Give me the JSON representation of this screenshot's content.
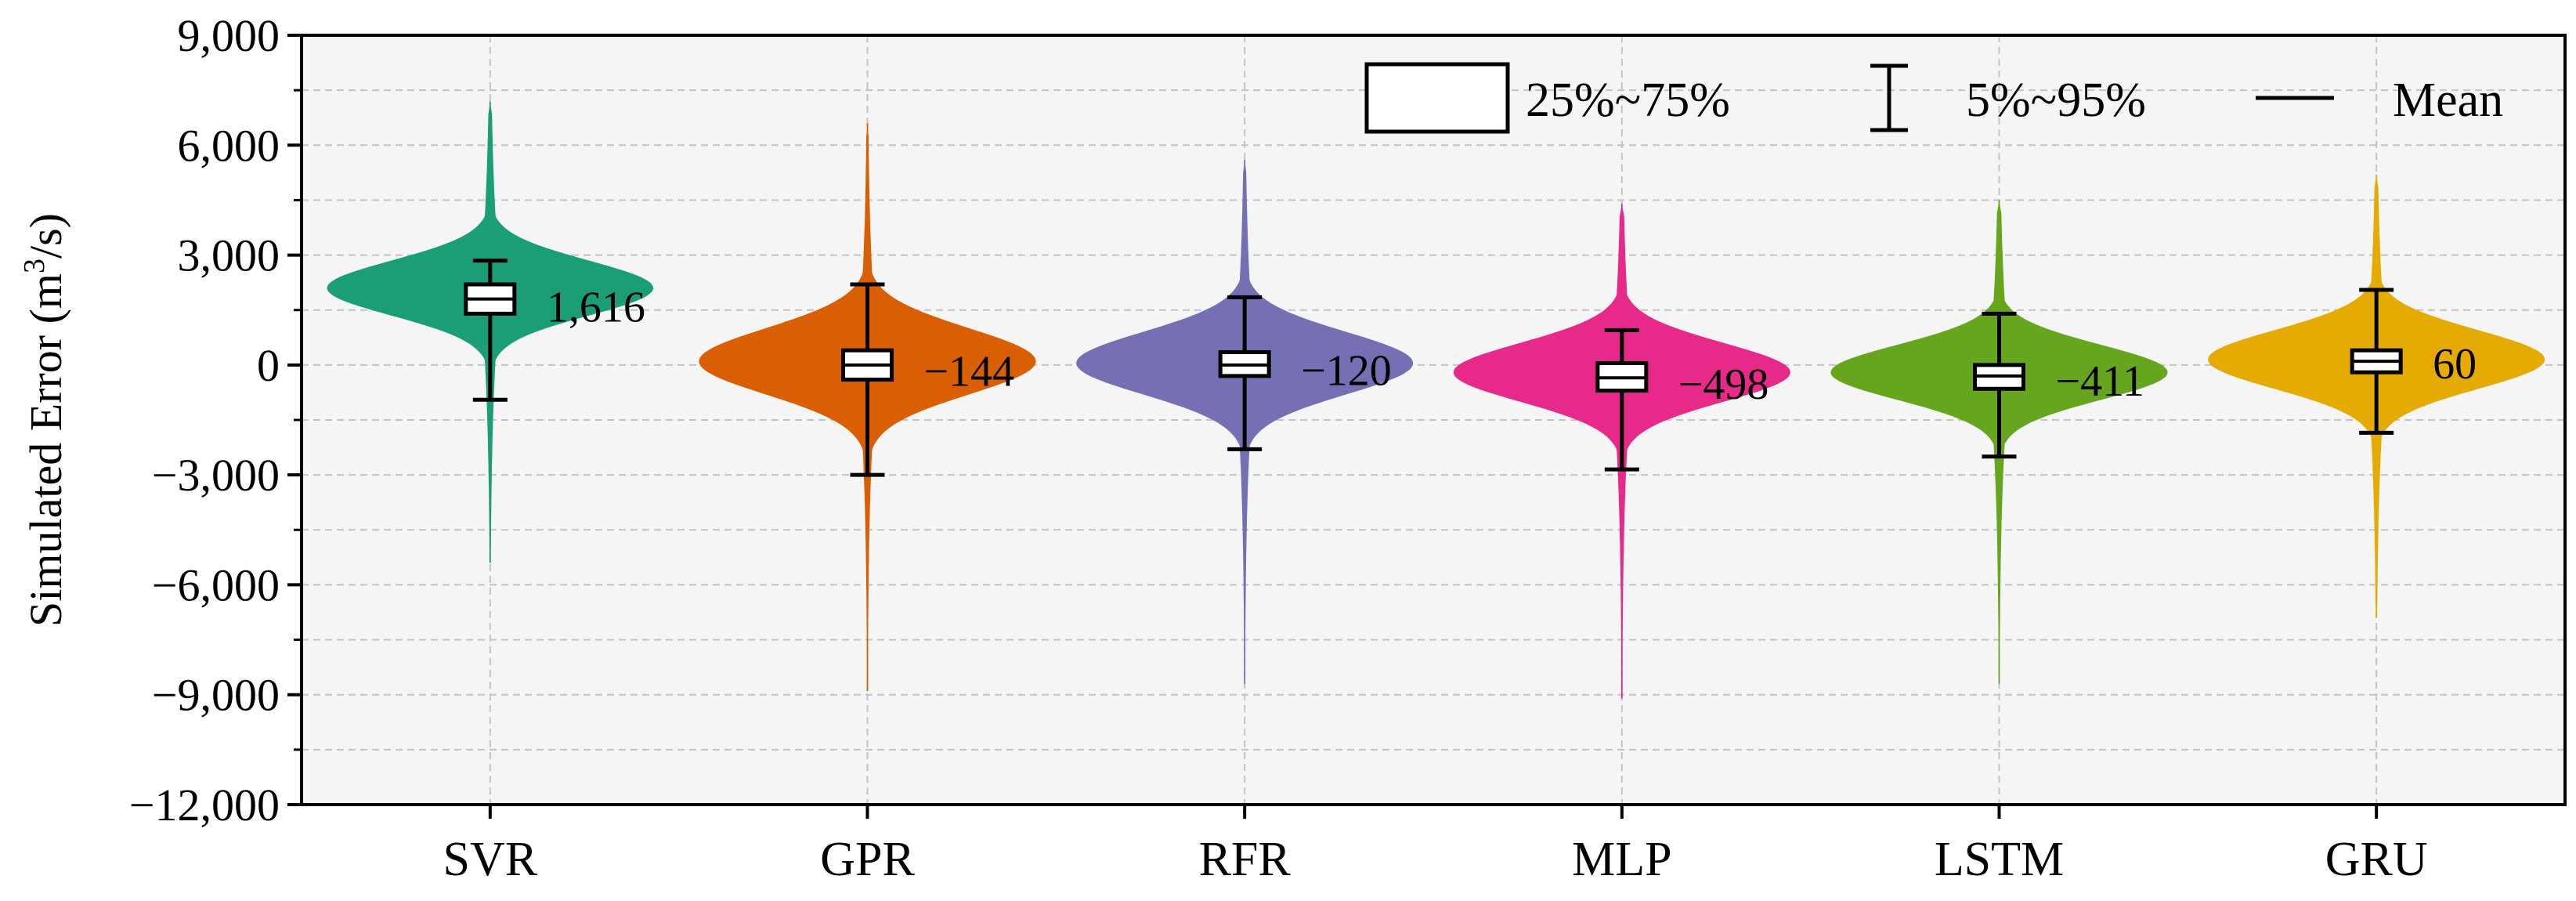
{
  "chart_data": {
    "type": "violin",
    "title": "",
    "xlabel": "",
    "ylabel": "Simulated Error (m",
    "ylabel_sup": "3",
    "ylabel_tail": "/s)",
    "ylim": [
      -12000,
      9000
    ],
    "yticks": [
      9000,
      6000,
      3000,
      0,
      -3000,
      -6000,
      -9000,
      -12000
    ],
    "ytick_labels": [
      "9,000",
      "6,000",
      "3,000",
      "0",
      "−3,000",
      "−6,000",
      "−9,000",
      "−12,000"
    ],
    "grid": true,
    "legend": {
      "placement": "top-right",
      "box_label": "25%~75%",
      "whisker_label": "5%~95%",
      "mean_label": "Mean"
    },
    "categories": [
      "SVR",
      "GPR",
      "RFR",
      "MLP",
      "LSTM",
      "GRU"
    ],
    "series": [
      {
        "name": "SVR",
        "color": "#1b9e77",
        "min": -5400,
        "max": 7200,
        "mode": 2100,
        "spread": 750,
        "mode_width": 0.92,
        "q1": 1400,
        "q3": 2200,
        "median": 1800,
        "p5": -950,
        "p95": 2850,
        "mean": 1616,
        "mean_label": "1,616"
      },
      {
        "name": "GPR",
        "color": "#d95f02",
        "min": -8900,
        "max": 6600,
        "mode": 100,
        "spread": 900,
        "mode_width": 0.95,
        "q1": -400,
        "q3": 400,
        "median": 0,
        "p5": -3000,
        "p95": 2200,
        "mean": -144,
        "mean_label": "−144"
      },
      {
        "name": "RFR",
        "color": "#7570b3",
        "min": -8700,
        "max": 5600,
        "mode": 50,
        "spread": 850,
        "mode_width": 0.95,
        "q1": -300,
        "q3": 350,
        "median": 0,
        "p5": -2300,
        "p95": 1850,
        "mean": -120,
        "mean_label": "−120"
      },
      {
        "name": "MLP",
        "color": "#e7298a",
        "min": -9100,
        "max": 4400,
        "mode": -200,
        "spread": 800,
        "mode_width": 0.95,
        "q1": -700,
        "q3": 50,
        "median": -350,
        "p5": -2850,
        "p95": 950,
        "mean": -498,
        "mean_label": "−498"
      },
      {
        "name": "LSTM",
        "color": "#66a61e",
        "min": -8700,
        "max": 4500,
        "mode": -200,
        "spread": 750,
        "mode_width": 0.95,
        "q1": -650,
        "q3": 0,
        "median": -300,
        "p5": -2500,
        "p95": 1400,
        "mean": -411,
        "mean_label": "−411"
      },
      {
        "name": "GRU",
        "color": "#e6ab02",
        "min": -6900,
        "max": 5200,
        "mode": 150,
        "spread": 800,
        "mode_width": 0.95,
        "q1": -200,
        "q3": 400,
        "median": 100,
        "p5": -1850,
        "p95": 2050,
        "mean": 60,
        "mean_label": "60"
      }
    ]
  }
}
